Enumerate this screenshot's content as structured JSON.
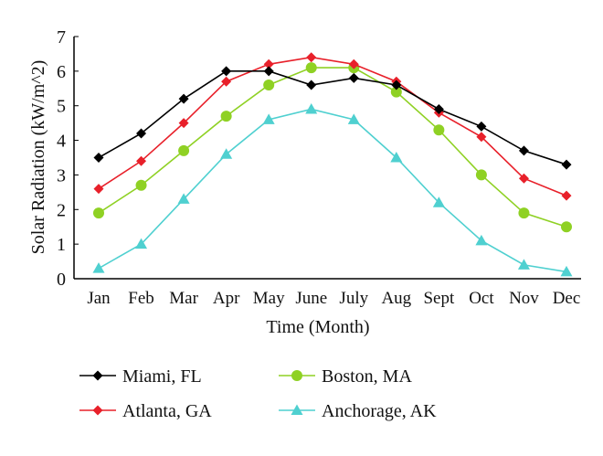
{
  "chart_data": {
    "type": "line",
    "xlabel": "Time (Month)",
    "ylabel": "Solar Radiation (kW/m^2)",
    "ylim": [
      0,
      7
    ],
    "yticks": [
      "0",
      "1",
      "2",
      "3",
      "4",
      "5",
      "6",
      "7"
    ],
    "categories": [
      "Jan",
      "Feb",
      "Mar",
      "Apr",
      "May",
      "June",
      "July",
      "Aug",
      "Sept",
      "Oct",
      "Nov",
      "Dec"
    ],
    "grid": false,
    "legend_position": "bottom",
    "series": [
      {
        "name": "Miami, FL",
        "color": "#000000",
        "marker": "diamond",
        "values": [
          3.5,
          4.2,
          5.2,
          6.0,
          6.0,
          5.6,
          5.8,
          5.6,
          4.9,
          4.4,
          3.7,
          3.3
        ]
      },
      {
        "name": "Boston, MA",
        "color": "#8fd124",
        "marker": "circle",
        "values": [
          1.9,
          2.7,
          3.7,
          4.7,
          5.6,
          6.1,
          6.1,
          5.4,
          4.3,
          3.0,
          1.9,
          1.5
        ]
      },
      {
        "name": "Atlanta, GA",
        "color": "#e8202a",
        "marker": "diamond",
        "values": [
          2.6,
          3.4,
          4.5,
          5.7,
          6.2,
          6.4,
          6.2,
          5.7,
          4.8,
          4.1,
          2.9,
          2.4
        ]
      },
      {
        "name": "Anchorage, AK",
        "color": "#4fd0d0",
        "marker": "triangle",
        "values": [
          0.3,
          1.0,
          2.3,
          3.6,
          4.6,
          4.9,
          4.6,
          3.5,
          2.2,
          1.1,
          0.4,
          0.2
        ]
      }
    ]
  }
}
